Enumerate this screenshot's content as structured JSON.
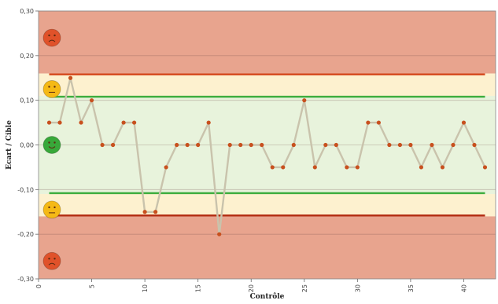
{
  "chart_data": {
    "type": "line",
    "xlabel": "Contrôle",
    "ylabel": "Ecart / Cible",
    "xlim": [
      0,
      43
    ],
    "ylim": [
      -0.3,
      0.3
    ],
    "x_ticks": [
      0,
      5,
      10,
      15,
      20,
      25,
      30,
      35,
      40
    ],
    "y_ticks": [
      0.3,
      0.2,
      0.1,
      0.0,
      -0.1,
      -0.2,
      -0.3
    ],
    "y_tick_labels": [
      "0,30",
      "0,20",
      "0,10",
      "0,00",
      "-0,10",
      "-0,20",
      "-0,30"
    ],
    "grid": true,
    "bands": [
      {
        "from": 0.16,
        "to": 0.3,
        "color": "#e8a48e",
        "status": "bad"
      },
      {
        "from": 0.11,
        "to": 0.16,
        "color": "#fdf1cf",
        "status": "warning"
      },
      {
        "from": -0.11,
        "to": 0.11,
        "color": "#e8f3dc",
        "status": "good"
      },
      {
        "from": -0.16,
        "to": -0.11,
        "color": "#fdf1cf",
        "status": "warning"
      },
      {
        "from": -0.3,
        "to": -0.16,
        "color": "#e8a48e",
        "status": "bad"
      }
    ],
    "reference_lines": [
      {
        "y": 0.158,
        "color": "#d4471c"
      },
      {
        "y": 0.108,
        "color": "#3fae3f"
      },
      {
        "y": -0.108,
        "color": "#3fae3f"
      },
      {
        "y": -0.158,
        "color": "#b22a10"
      }
    ],
    "status_icons": [
      {
        "y": 0.24,
        "icon": "sad-face-icon",
        "color": "#e0522a"
      },
      {
        "y": 0.125,
        "icon": "neutral-face-icon",
        "color": "#f5b915"
      },
      {
        "y": 0.0,
        "icon": "happy-face-icon",
        "color": "#38a83a"
      },
      {
        "y": -0.145,
        "icon": "neutral-face-icon",
        "color": "#f5b915"
      },
      {
        "y": -0.26,
        "icon": "sad-face-icon",
        "color": "#e0522a"
      }
    ],
    "series": [
      {
        "line_color": "#c9c3ac",
        "marker_color": "#c8501e",
        "x": [
          1,
          2,
          3,
          4,
          5,
          6,
          7,
          8,
          9,
          10,
          11,
          12,
          13,
          14,
          15,
          16,
          17,
          18,
          19,
          20,
          21,
          22,
          23,
          24,
          25,
          26,
          27,
          28,
          29,
          30,
          31,
          32,
          33,
          34,
          35,
          36,
          37,
          38,
          39,
          40,
          41,
          42
        ],
        "values": [
          0.05,
          0.05,
          0.15,
          0.05,
          0.1,
          0,
          0,
          0.05,
          0.05,
          -0.15,
          -0.15,
          -0.05,
          0,
          0,
          0,
          0.05,
          -0.2,
          0,
          0,
          0,
          0,
          -0.05,
          -0.05,
          0,
          0.1,
          -0.05,
          0,
          0,
          -0.05,
          -0.05,
          0.05,
          0.05,
          0,
          0,
          0,
          -0.05,
          0,
          -0.05,
          0,
          0.05,
          0,
          -0.05
        ]
      }
    ]
  }
}
